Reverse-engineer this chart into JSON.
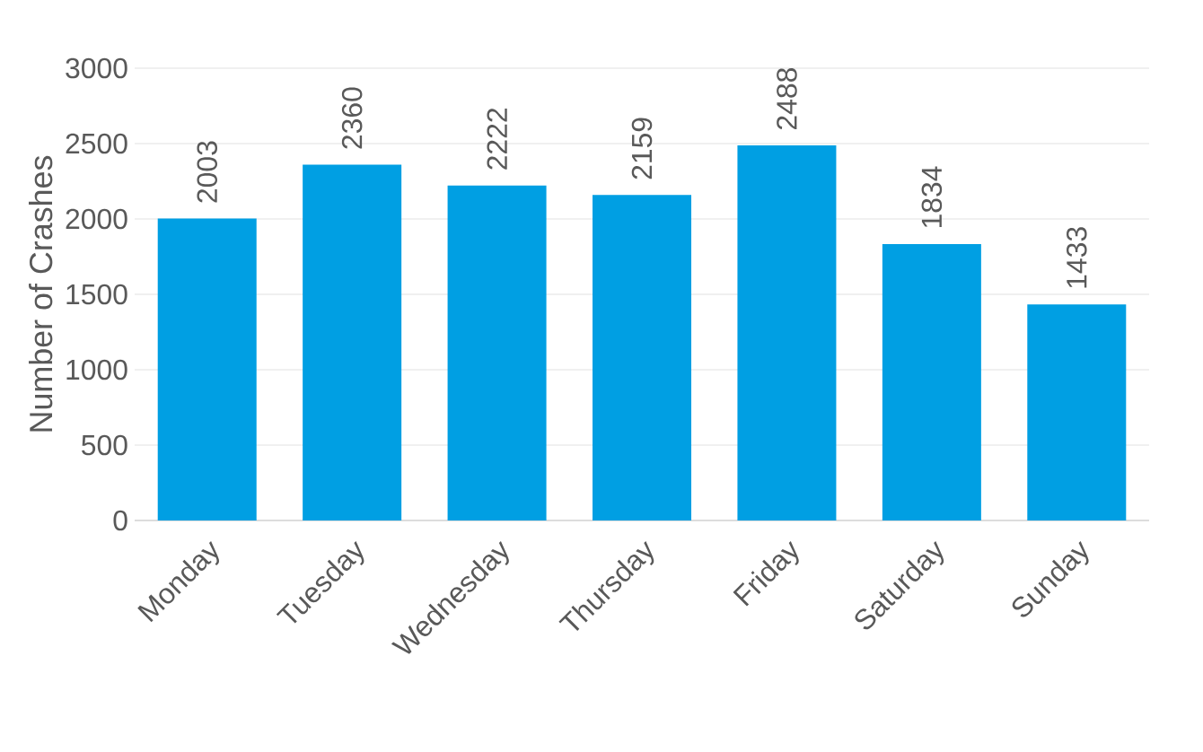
{
  "chart_data": {
    "type": "bar",
    "ylabel": "Number of Crashes",
    "categories": [
      "Monday",
      "Tuesday",
      "Wednesday",
      "Thursday",
      "Friday",
      "Saturday",
      "Sunday"
    ],
    "values": [
      2003,
      2360,
      2222,
      2159,
      2488,
      1834,
      1433
    ],
    "color": "#009fe3",
    "ylim": [
      0,
      3000
    ],
    "yticks": [
      0,
      500,
      1000,
      1500,
      2000,
      2500,
      3000
    ],
    "grid": "y",
    "data_labels": true
  }
}
